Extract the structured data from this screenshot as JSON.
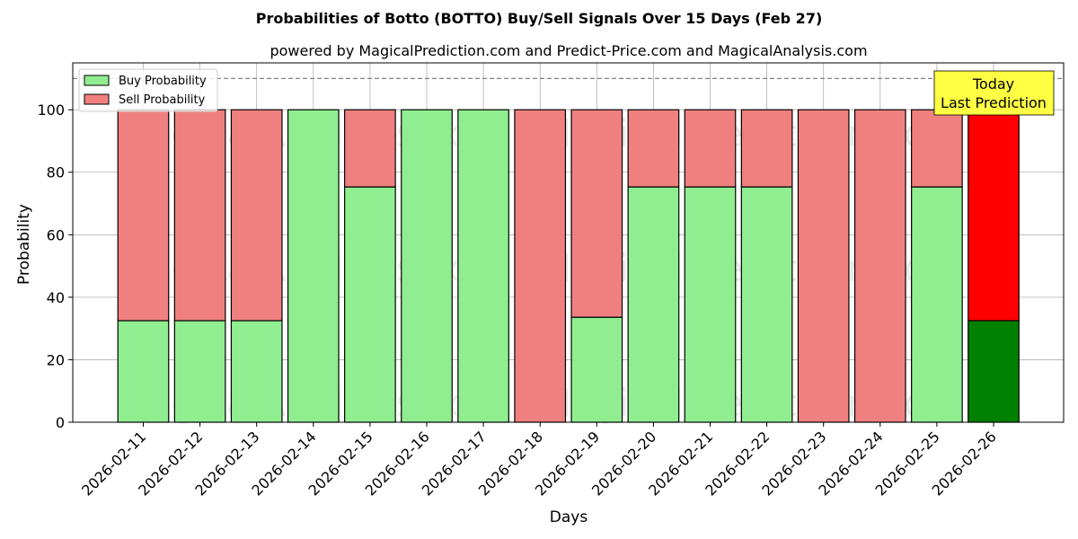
{
  "chart_data": {
    "type": "bar",
    "stacked": true,
    "title": "Probabilities of Botto (BOTTO) Buy/Sell Signals Over 15 Days (Feb 27)",
    "subtitle": "powered by MagicalPrediction.com and Predict-Price.com and MagicalAnalysis.com",
    "xlabel": "Days",
    "ylabel": "Probability",
    "ylim": [
      0,
      115
    ],
    "yticks": [
      0,
      20,
      40,
      60,
      80,
      100
    ],
    "grid": true,
    "legend_position": "top-left",
    "categories": [
      "2026-02-11",
      "2026-02-12",
      "2026-02-13",
      "2026-02-14",
      "2026-02-15",
      "2026-02-16",
      "2026-02-17",
      "2026-02-18",
      "2026-02-19",
      "2026-02-20",
      "2026-02-21",
      "2026-02-22",
      "2026-02-23",
      "2026-02-24",
      "2026-02-25",
      "2026-02-26"
    ],
    "series": [
      {
        "name": "Buy Probability",
        "color": "#90ee90",
        "values": [
          32.5,
          32.5,
          32.5,
          100,
          75.3,
          100,
          100,
          0,
          33.6,
          75.3,
          75.3,
          75.3,
          0,
          0,
          75.3,
          32.5
        ]
      },
      {
        "name": "Sell Probability",
        "color": "#f08080",
        "values": [
          67.5,
          67.5,
          67.5,
          0,
          24.7,
          0,
          0,
          100,
          66.4,
          24.7,
          24.7,
          24.7,
          100,
          100,
          24.7,
          67.5
        ]
      }
    ],
    "highlight": {
      "index": 15,
      "buy_color": "#008000",
      "sell_color": "#ff0000"
    },
    "reference_line": {
      "y": 110,
      "style": "dashed"
    },
    "annotation": {
      "lines": [
        "Today",
        "Last Prediction"
      ],
      "color": "#ffff44"
    },
    "watermarks": [
      "MagicalAnalysis.com",
      "MagicalPrediction.com"
    ]
  }
}
